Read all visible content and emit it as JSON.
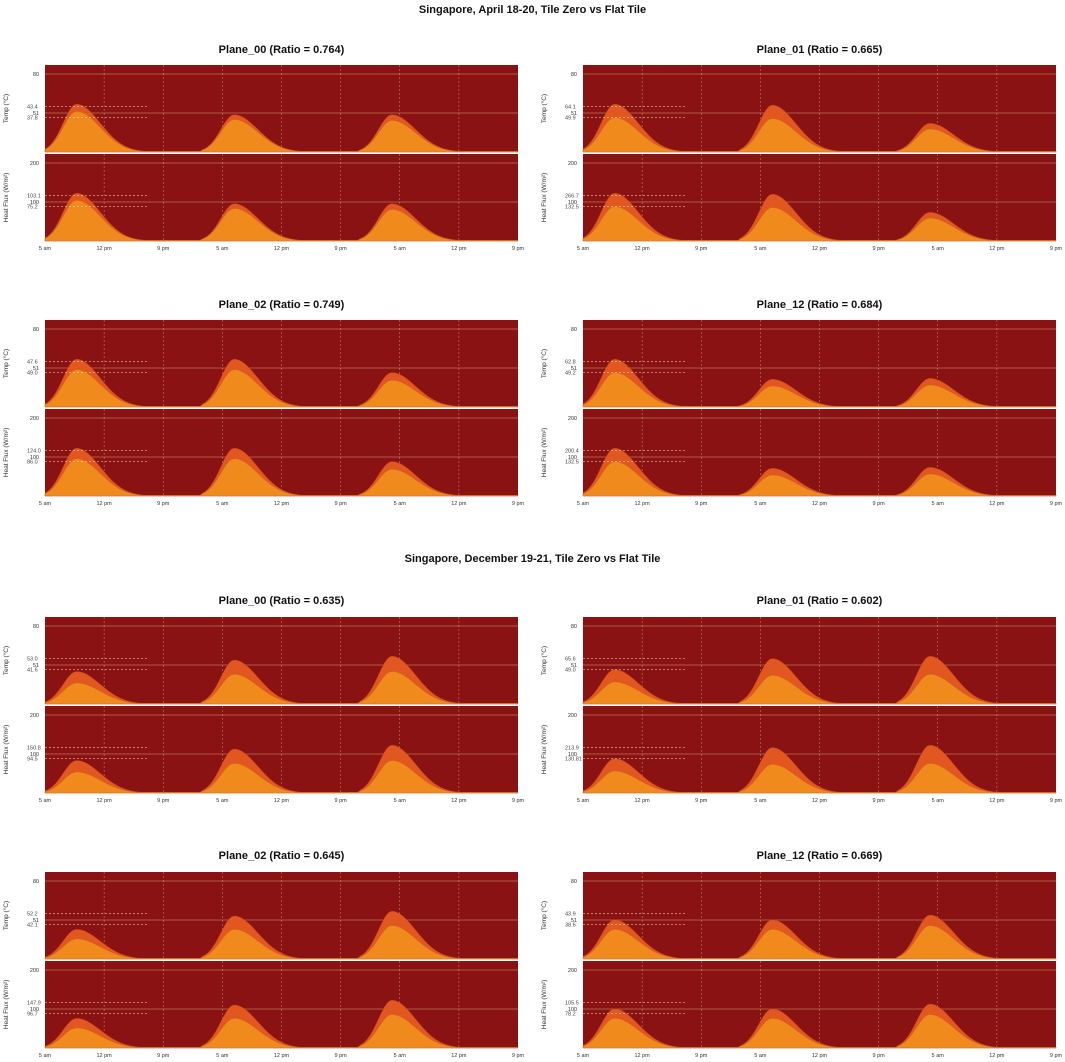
{
  "sections": [
    {
      "title": "Singapore, April 18-20, Tile Zero vs Flat Tile"
    },
    {
      "title": "Singapore, December 19-21, Tile Zero vs Flat Tile"
    }
  ],
  "colors": {
    "background": "#8b1212",
    "tile_zero": "#e1571f",
    "flat_tile": "#f08a1c",
    "gridline": "#e9dfa0"
  },
  "chart_data": [
    {
      "type": "area",
      "section": 0,
      "title": "Plane_00 (Ratio = 0.764)",
      "ylabel_top": "Temp (°C)",
      "ylabel_bottom": "Heat Flux (W/m²)",
      "x_ticks": [
        "5 am",
        "12 pm",
        "9 pm",
        "5 am",
        "12 pm",
        "9 pm",
        "5 am",
        "12 pm",
        "9 pm"
      ],
      "temp_axis_ticks": [
        "80",
        "51"
      ],
      "flux_axis_ticks": [
        "200",
        "100"
      ],
      "temp_marks": [
        "43.4",
        "37.8"
      ],
      "flux_marks": [
        "103.1",
        "75.2"
      ],
      "day_peaks": [
        {
          "zero_scale": 1.0,
          "flat_scale": 0.85
        },
        {
          "zero_scale": 0.78,
          "flat_scale": 0.68
        },
        {
          "zero_scale": 0.78,
          "flat_scale": 0.66
        }
      ]
    },
    {
      "type": "area",
      "section": 0,
      "title": "Plane_01 (Ratio = 0.665)",
      "ylabel_top": "Temp (°C)",
      "ylabel_bottom": "Heat Flux (W/m²)",
      "x_ticks": [
        "5 am",
        "12 pm",
        "9 pm",
        "5 am",
        "12 pm",
        "9 pm",
        "5 am",
        "12 pm",
        "9 pm"
      ],
      "temp_axis_ticks": [
        "80",
        "51"
      ],
      "flux_axis_ticks": [
        "200",
        "100"
      ],
      "temp_marks": [
        "64.1",
        "49.9"
      ],
      "flux_marks": [
        "266.7",
        "132.5"
      ],
      "day_peaks": [
        {
          "zero_scale": 1.0,
          "flat_scale": 0.72
        },
        {
          "zero_scale": 0.98,
          "flat_scale": 0.7
        },
        {
          "zero_scale": 0.6,
          "flat_scale": 0.48
        }
      ]
    },
    {
      "type": "area",
      "section": 0,
      "title": "Plane_02 (Ratio = 0.749)",
      "ylabel_top": "Temp (°C)",
      "ylabel_bottom": "Heat Flux (W/m²)",
      "x_ticks": [
        "5 am",
        "12 pm",
        "9 pm",
        "5 am",
        "12 pm",
        "9 pm",
        "5 am",
        "12 pm",
        "9 pm"
      ],
      "temp_axis_ticks": [
        "80",
        "51"
      ],
      "flux_axis_ticks": [
        "200",
        "100"
      ],
      "temp_marks": [
        "47.6",
        "49.0"
      ],
      "flux_marks": [
        "124.0",
        "86.0"
      ],
      "day_peaks": [
        {
          "zero_scale": 1.0,
          "flat_scale": 0.78
        },
        {
          "zero_scale": 1.0,
          "flat_scale": 0.78
        },
        {
          "zero_scale": 0.72,
          "flat_scale": 0.56
        }
      ]
    },
    {
      "type": "area",
      "section": 0,
      "title": "Plane_12 (Ratio = 0.684)",
      "ylabel_top": "Temp (°C)",
      "ylabel_bottom": "Heat Flux (W/m²)",
      "x_ticks": [
        "5 am",
        "12 pm",
        "9 pm",
        "5 am",
        "12 pm",
        "9 pm",
        "5 am",
        "12 pm",
        "9 pm"
      ],
      "temp_axis_ticks": [
        "80",
        "51"
      ],
      "flux_axis_ticks": [
        "200",
        "100"
      ],
      "temp_marks": [
        "62.8",
        "49.2"
      ],
      "flux_marks": [
        "200.4",
        "132.5"
      ],
      "day_peaks": [
        {
          "zero_scale": 1.0,
          "flat_scale": 0.72
        },
        {
          "zero_scale": 0.58,
          "flat_scale": 0.44
        },
        {
          "zero_scale": 0.6,
          "flat_scale": 0.46
        }
      ]
    },
    {
      "type": "area",
      "section": 1,
      "title": "Plane_00 (Ratio = 0.635)",
      "ylabel_top": "Temp (°C)",
      "ylabel_bottom": "Heat Flux (W/m²)",
      "x_ticks": [
        "5 am",
        "12 pm",
        "9 pm",
        "5 am",
        "12 pm",
        "9 pm",
        "5 am",
        "12 pm",
        "9 pm"
      ],
      "temp_axis_ticks": [
        "80",
        "51"
      ],
      "flux_axis_ticks": [
        "200",
        "100"
      ],
      "temp_marks": [
        "53.0",
        "41.6"
      ],
      "flux_marks": [
        "150.8",
        "94.5"
      ],
      "day_peaks": [
        {
          "zero_scale": 0.68,
          "flat_scale": 0.44
        },
        {
          "zero_scale": 0.92,
          "flat_scale": 0.62
        },
        {
          "zero_scale": 1.0,
          "flat_scale": 0.68
        }
      ]
    },
    {
      "type": "area",
      "section": 1,
      "title": "Plane_01 (Ratio = 0.602)",
      "ylabel_top": "Temp (°C)",
      "ylabel_bottom": "Heat Flux (W/m²)",
      "x_ticks": [
        "5 am",
        "12 pm",
        "9 pm",
        "5 am",
        "12 pm",
        "9 pm",
        "5 am",
        "12 pm",
        "9 pm"
      ],
      "temp_axis_ticks": [
        "80",
        "51"
      ],
      "flux_axis_ticks": [
        "200",
        "100"
      ],
      "temp_marks": [
        "65.6",
        "49.0"
      ],
      "flux_marks": [
        "213.9",
        "130.81"
      ],
      "day_peaks": [
        {
          "zero_scale": 0.72,
          "flat_scale": 0.46
        },
        {
          "zero_scale": 0.95,
          "flat_scale": 0.6
        },
        {
          "zero_scale": 1.0,
          "flat_scale": 0.62
        }
      ]
    },
    {
      "type": "area",
      "section": 1,
      "title": "Plane_02 (Ratio = 0.645)",
      "ylabel_top": "Temp (°C)",
      "ylabel_bottom": "Heat Flux (W/m²)",
      "x_ticks": [
        "5 am",
        "12 pm",
        "9 pm",
        "5 am",
        "12 pm",
        "9 pm",
        "5 am",
        "12 pm",
        "9 pm"
      ],
      "temp_axis_ticks": [
        "80",
        "51"
      ],
      "flux_axis_ticks": [
        "200",
        "100"
      ],
      "temp_marks": [
        "52.2",
        "42.1"
      ],
      "flux_marks": [
        "147.9",
        "96.7"
      ],
      "day_peaks": [
        {
          "zero_scale": 0.62,
          "flat_scale": 0.42
        },
        {
          "zero_scale": 0.9,
          "flat_scale": 0.62
        },
        {
          "zero_scale": 1.0,
          "flat_scale": 0.7
        }
      ]
    },
    {
      "type": "area",
      "section": 1,
      "title": "Plane_12 (Ratio = 0.669)",
      "ylabel_top": "Temp (°C)",
      "ylabel_bottom": "Heat Flux (W/m²)",
      "x_ticks": [
        "5 am",
        "12 pm",
        "9 pm",
        "5 am",
        "12 pm",
        "9 pm",
        "5 am",
        "12 pm",
        "9 pm"
      ],
      "temp_axis_ticks": [
        "80",
        "51"
      ],
      "flux_axis_ticks": [
        "200",
        "100"
      ],
      "temp_marks": [
        "43.9",
        "38.6"
      ],
      "flux_marks": [
        "105.5",
        "78.2"
      ],
      "day_peaks": [
        {
          "zero_scale": 0.82,
          "flat_scale": 0.62
        },
        {
          "zero_scale": 0.82,
          "flat_scale": 0.62
        },
        {
          "zero_scale": 0.92,
          "flat_scale": 0.7
        }
      ]
    }
  ]
}
